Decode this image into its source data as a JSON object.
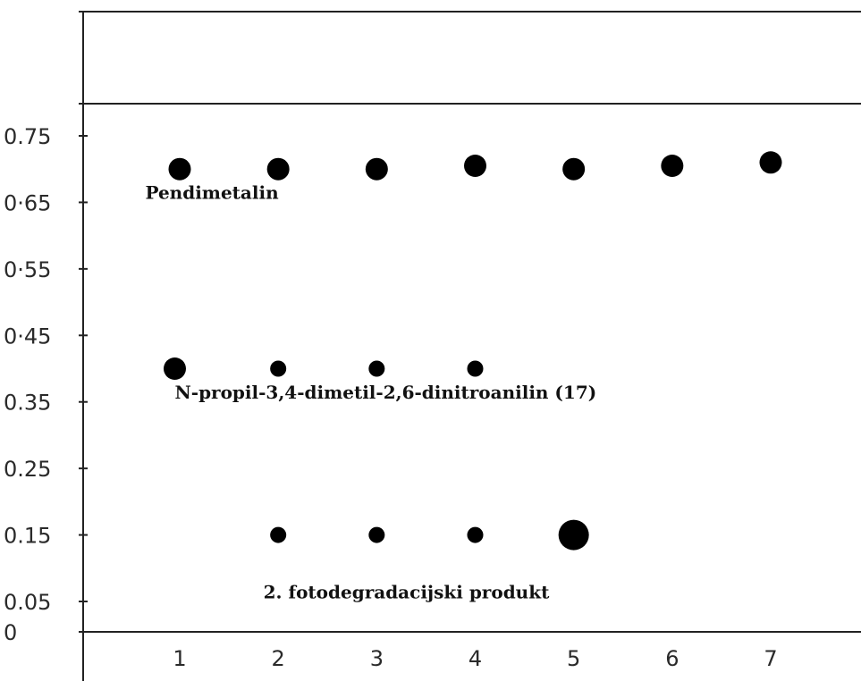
{
  "chart_data": {
    "type": "scatter",
    "title": "",
    "xlabel": "",
    "ylabel": "",
    "x_ticks": [
      "1",
      "2",
      "3",
      "4",
      "5",
      "6",
      "7"
    ],
    "y_ticks": [
      "0.75",
      "0·65",
      "0·55",
      "0·45",
      "0.35",
      "0.25",
      "0.15",
      "0.05",
      "0"
    ],
    "y_tick_values": [
      0.75,
      0.65,
      0.55,
      0.45,
      0.35,
      0.25,
      0.15,
      0.05,
      0
    ],
    "xlim": [
      0.1,
      8.0
    ],
    "ylim": [
      -0.03,
      0.88
    ],
    "grid": false,
    "series": [
      {
        "points": [
          {
            "x": 1,
            "y": 0.7,
            "size": "medium"
          },
          {
            "x": 2,
            "y": 0.7,
            "size": "medium"
          },
          {
            "x": 3,
            "y": 0.7,
            "size": "medium"
          },
          {
            "x": 4,
            "y": 0.705,
            "size": "medium"
          },
          {
            "x": 5,
            "y": 0.7,
            "size": "medium"
          },
          {
            "x": 6,
            "y": 0.705,
            "size": "medium"
          },
          {
            "x": 7,
            "y": 0.71,
            "size": "medium"
          }
        ]
      },
      {
        "points": [
          {
            "x": 0.95,
            "y": 0.4,
            "size": "medium"
          },
          {
            "x": 2,
            "y": 0.4,
            "size": "small"
          },
          {
            "x": 3,
            "y": 0.4,
            "size": "small"
          },
          {
            "x": 4,
            "y": 0.4,
            "size": "small"
          }
        ]
      },
      {
        "points": [
          {
            "x": 2,
            "y": 0.15,
            "size": "small"
          },
          {
            "x": 3,
            "y": 0.15,
            "size": "small"
          },
          {
            "x": 4,
            "y": 0.15,
            "size": "small"
          },
          {
            "x": 5,
            "y": 0.15,
            "size": "large"
          }
        ]
      }
    ],
    "annotations": [
      {
        "text": "Pendimetalin",
        "x": 0.65,
        "y": 0.655
      },
      {
        "text": "N-propil-3,4-dimetil-2,6-dinitroanilin (17)",
        "x": 0.95,
        "y": 0.355
      },
      {
        "text": "2. fotodegradacijski produkt",
        "x": 1.85,
        "y": 0.055
      }
    ]
  },
  "style": {
    "ink": "#000000",
    "axis_color": "#222222"
  }
}
